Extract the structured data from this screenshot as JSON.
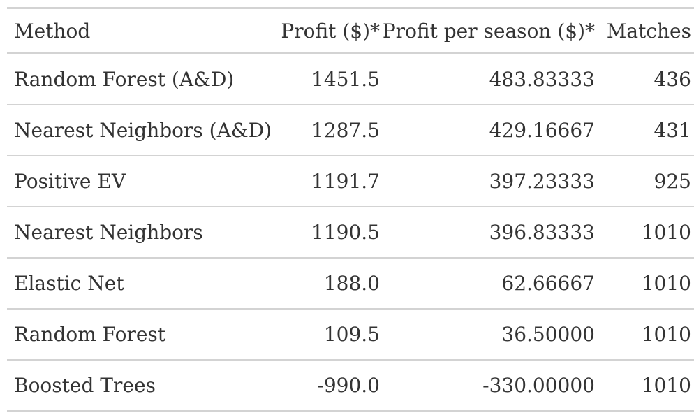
{
  "table": {
    "columns": [
      "Method",
      "Profit ($)*",
      "Profit per season ($)*",
      "Matches"
    ],
    "rows": [
      {
        "method": "Random Forest (A&D)",
        "profit": "1451.5",
        "profit_per_season": "483.83333",
        "matches": "436"
      },
      {
        "method": "Nearest Neighbors (A&D)",
        "profit": "1287.5",
        "profit_per_season": "429.16667",
        "matches": "431"
      },
      {
        "method": "Positive EV",
        "profit": "1191.7",
        "profit_per_season": "397.23333",
        "matches": "925"
      },
      {
        "method": "Nearest Neighbors",
        "profit": "1190.5",
        "profit_per_season": "396.83333",
        "matches": "1010"
      },
      {
        "method": "Elastic Net",
        "profit": "188.0",
        "profit_per_season": "62.66667",
        "matches": "1010"
      },
      {
        "method": "Random Forest",
        "profit": "109.5",
        "profit_per_season": "36.50000",
        "matches": "1010"
      },
      {
        "method": "Boosted Trees",
        "profit": "-990.0",
        "profit_per_season": "-330.00000",
        "matches": "1010"
      }
    ]
  },
  "colors": {
    "text": "#333333",
    "rule": "#d3d3d3",
    "background": "#ffffff"
  }
}
